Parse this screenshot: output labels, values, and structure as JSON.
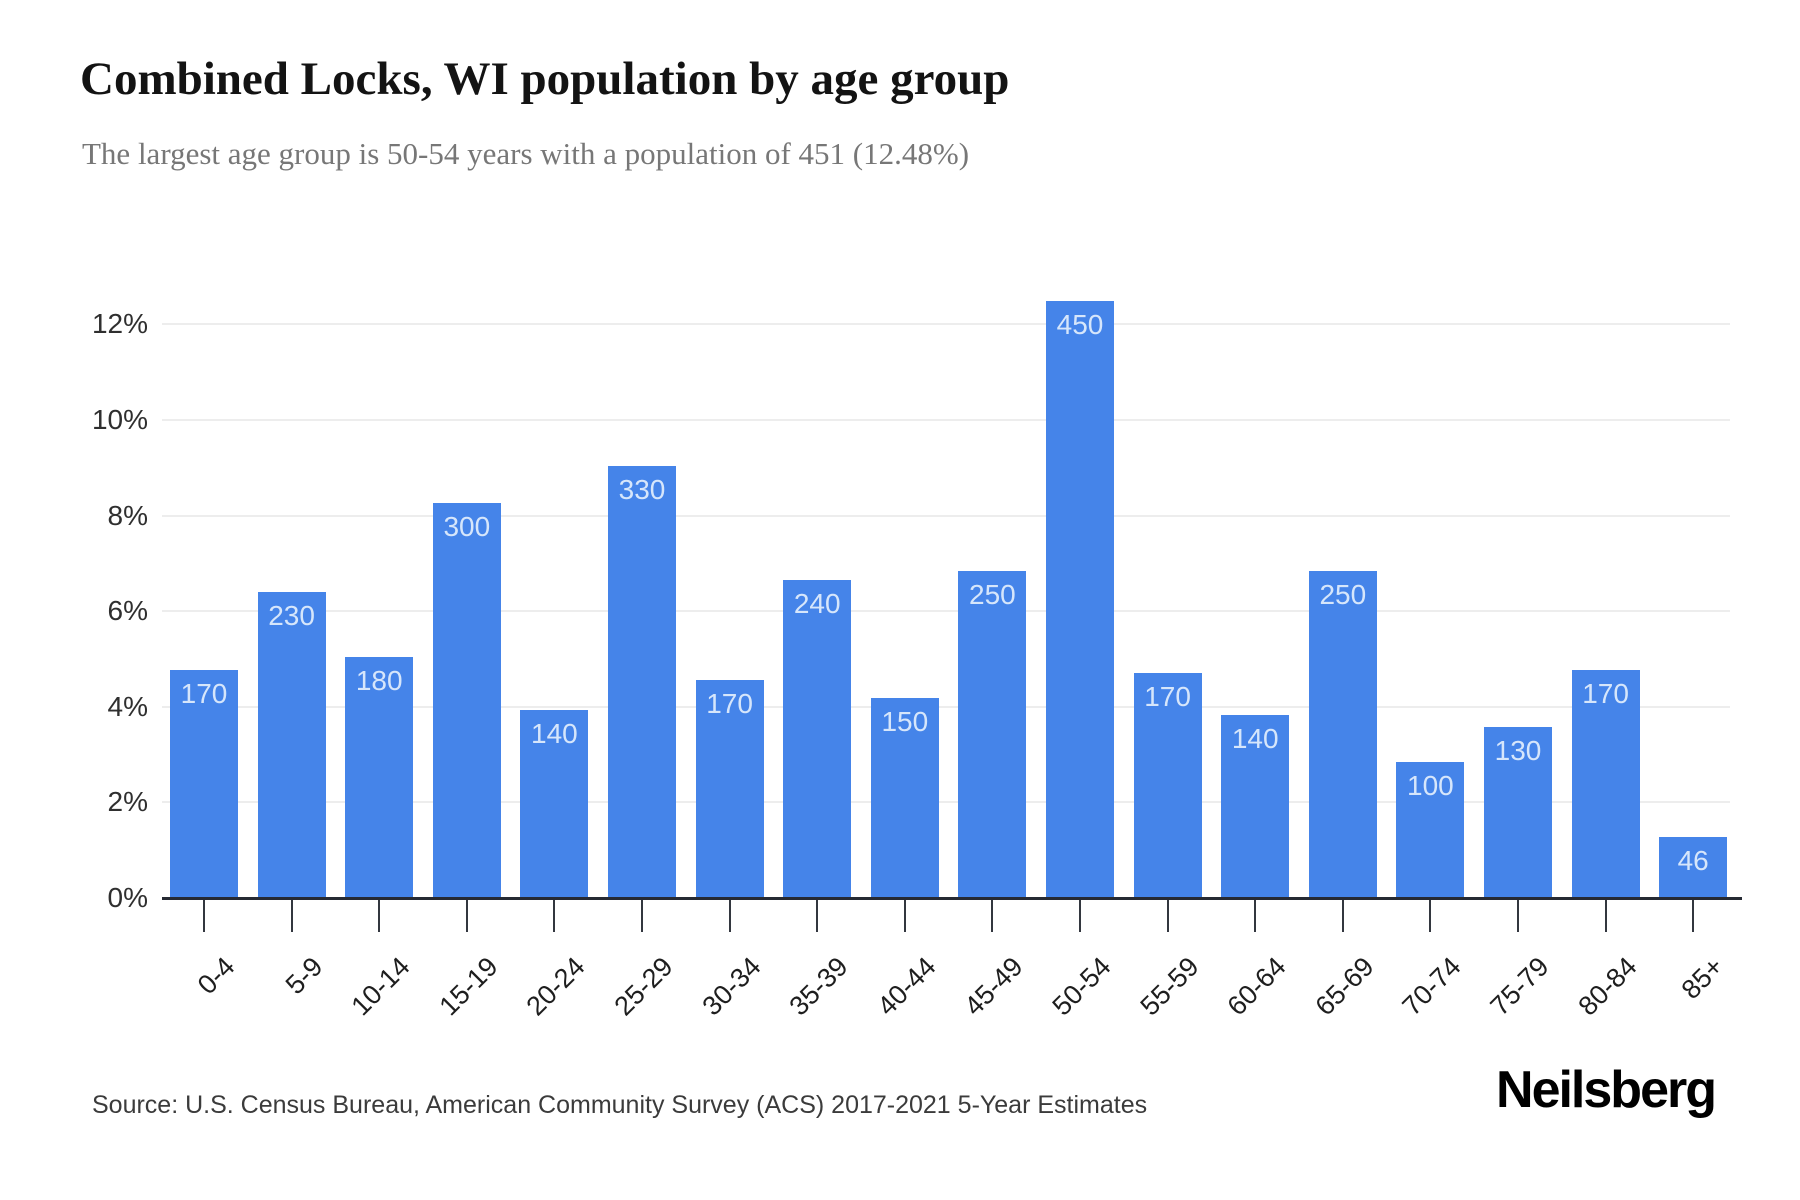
{
  "chart_data": {
    "type": "bar",
    "title": "Combined Locks, WI population by age group",
    "subtitle": "The largest age group is 50-54 years with a population of 451 (12.48%)",
    "categories": [
      "0-4",
      "5-9",
      "10-14",
      "15-19",
      "20-24",
      "25-29",
      "30-34",
      "35-39",
      "40-44",
      "45-49",
      "50-54",
      "55-59",
      "60-64",
      "65-69",
      "70-74",
      "75-79",
      "80-84",
      "85+"
    ],
    "values": [
      170,
      230,
      180,
      300,
      140,
      330,
      170,
      240,
      150,
      250,
      450,
      170,
      140,
      250,
      100,
      130,
      170,
      46
    ],
    "percents": [
      4.77,
      6.4,
      5.04,
      8.26,
      3.93,
      9.04,
      4.56,
      6.65,
      4.18,
      6.84,
      12.48,
      4.71,
      3.83,
      6.84,
      2.85,
      3.58,
      4.77,
      1.28
    ],
    "y_ticks": [
      "0%",
      "2%",
      "4%",
      "6%",
      "8%",
      "10%",
      "12%"
    ],
    "ylim": [
      0,
      13
    ],
    "xlabel": "",
    "ylabel": "",
    "grid": "horizontal",
    "legend": "none",
    "colors": {
      "bar": "#4584e9",
      "bar_label": "#d6e6fb",
      "gridline": "#ededed",
      "axis": "#262a33",
      "tick_label": "#2f2f2f",
      "title": "#131313",
      "subtitle": "#777777"
    }
  },
  "footer": {
    "source": "Source: U.S. Census Bureau, American Community Survey (ACS) 2017-2021 5-Year Estimates",
    "brand": "Neilsberg"
  }
}
